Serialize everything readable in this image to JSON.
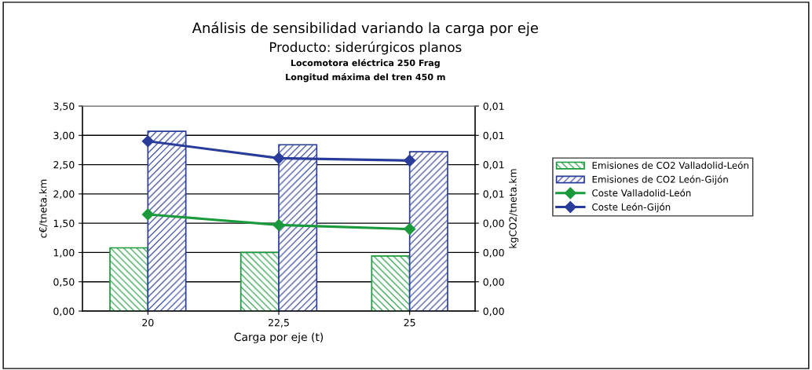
{
  "chart_data": {
    "type": "bar",
    "title": "Análisis de sensibilidad variando la carga por eje",
    "subtitle": "Producto: siderúrgicos planos",
    "annotations": [
      "Locomotora eléctrica 250 Frag",
      "Longitud máxima del tren 450 m"
    ],
    "xlabel": "Carga por eje (t)",
    "ylabel": "c€/tneta.km",
    "y2label": "kgCO2/tneta.km",
    "categories": [
      "20",
      "22,5",
      "25"
    ],
    "series": [
      {
        "name": "Emisiones de CO2 Valladolid-León",
        "axis": "y2",
        "color": "#1a9a3c",
        "values": [
          0.00324,
          0.003,
          0.00282
        ]
      },
      {
        "name": "Emisiones de CO2 León-Gijón",
        "axis": "y2",
        "color": "#2a3c9a",
        "values": [
          0.00921,
          0.00852,
          0.00816
        ]
      },
      {
        "name": "Coste Valladolid-León",
        "type": "line",
        "color": "#1a9a3c",
        "marker": "diamond",
        "values": [
          1.65,
          1.47,
          1.4
        ]
      },
      {
        "name": "Coste León-Gijón",
        "type": "line",
        "color": "#2a3c9a",
        "marker": "diamond",
        "values": [
          2.9,
          2.61,
          2.57
        ]
      }
    ],
    "ylim": [
      0,
      3.5
    ],
    "yticks": [
      {
        "value": 0,
        "label": "0,00"
      },
      {
        "value": 0.5,
        "label": "0,50"
      },
      {
        "value": 1,
        "label": "1,00"
      },
      {
        "value": 1.5,
        "label": "1,50"
      },
      {
        "value": 2,
        "label": "2,00"
      },
      {
        "value": 2.5,
        "label": "2,50"
      },
      {
        "value": 3,
        "label": "3,00"
      },
      {
        "value": 3.5,
        "label": "3,50"
      }
    ],
    "y2lim": [
      0,
      0.0105
    ],
    "y2ticks": [
      {
        "value": 0,
        "label": "0,00"
      },
      {
        "value": 0.0015,
        "label": "0,00"
      },
      {
        "value": 0.003,
        "label": "0,00"
      },
      {
        "value": 0.0045,
        "label": "0,00"
      },
      {
        "value": 0.006,
        "label": "0,01"
      },
      {
        "value": 0.0075,
        "label": "0,01"
      },
      {
        "value": 0.009,
        "label": "0,01"
      },
      {
        "value": 0.0105,
        "label": "0,01"
      }
    ],
    "grid": "y",
    "legend": "right"
  }
}
